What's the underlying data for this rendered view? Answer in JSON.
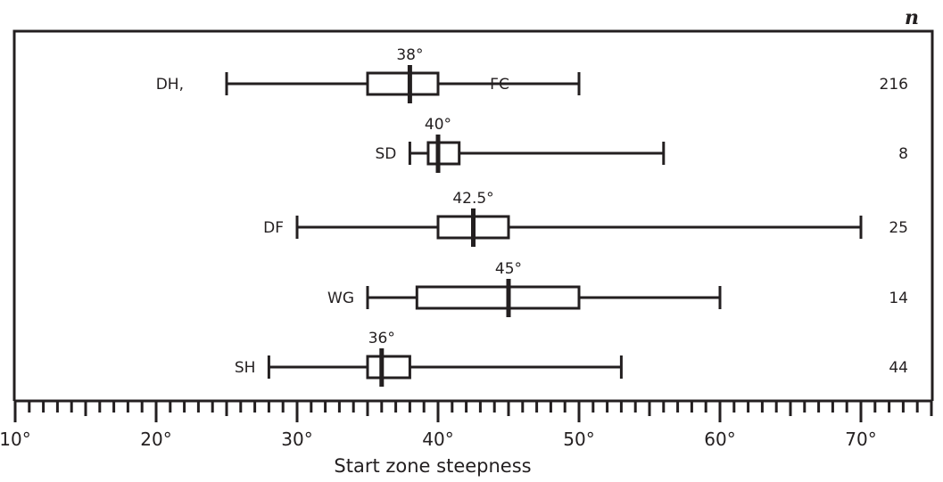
{
  "chart_data": {
    "type": "boxplot",
    "orientation": "horizontal",
    "title": "",
    "xlabel": "Start zone steepness",
    "ylabel": "",
    "xlim": [
      10,
      75
    ],
    "x_ticks": [
      "10°",
      "20°",
      "30°",
      "40°",
      "50°",
      "60°",
      "70°"
    ],
    "x_tick_values": [
      10,
      20,
      30,
      40,
      50,
      60,
      70
    ],
    "minor_tick_step": 1,
    "n_header": "n",
    "series": [
      {
        "name": "DH, FC",
        "label_left": "DH,",
        "label_inline": "FC",
        "whisker_low": 25,
        "q1": 35,
        "median": 38,
        "q3": 40,
        "whisker_high": 50,
        "median_label": "38°",
        "n": "216"
      },
      {
        "name": "SD",
        "label_left": "SD",
        "whisker_low": 38,
        "q1": 39.3,
        "median": 40,
        "q3": 41.5,
        "whisker_high": 56,
        "median_label": "40°",
        "n": "8"
      },
      {
        "name": "DF",
        "label_left": "DF",
        "whisker_low": 30,
        "q1": 40,
        "median": 42.5,
        "q3": 45,
        "whisker_high": 70,
        "median_label": "42.5°",
        "n": "25"
      },
      {
        "name": "WG",
        "label_left": "WG",
        "whisker_low": 35,
        "q1": 38.5,
        "median": 45,
        "q3": 50,
        "whisker_high": 60,
        "median_label": "45°",
        "n": "14"
      },
      {
        "name": "SH",
        "label_left": "SH",
        "whisker_low": 28,
        "q1": 35,
        "median": 36,
        "q3": 38,
        "whisker_high": 53,
        "median_label": "36°",
        "n": "44"
      }
    ],
    "grid": false,
    "legend": "none"
  },
  "colors": {
    "ink": "#231f20",
    "background": "#ffffff"
  }
}
